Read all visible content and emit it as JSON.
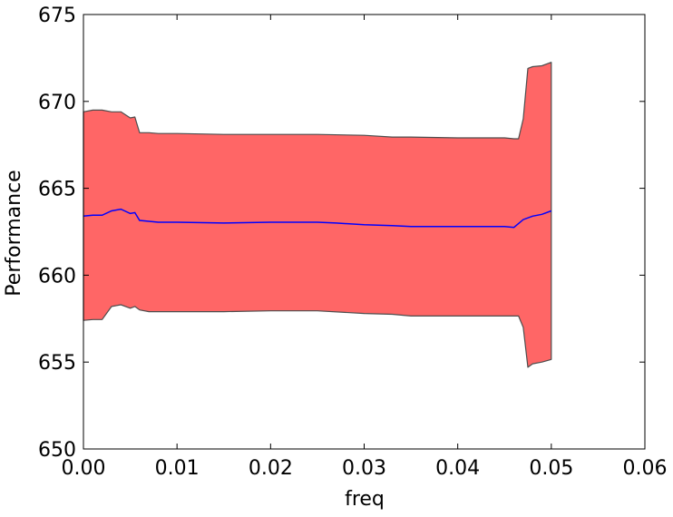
{
  "chart_data": {
    "type": "area",
    "title": "",
    "xlabel": "freq",
    "ylabel": "Performance",
    "xlim": [
      0.0,
      0.06
    ],
    "ylim": [
      650,
      675
    ],
    "x_ticks": [
      "0.00",
      "0.01",
      "0.02",
      "0.03",
      "0.04",
      "0.05",
      "0.06"
    ],
    "y_ticks": [
      "650",
      "655",
      "660",
      "665",
      "670",
      "675"
    ],
    "grid": false,
    "legend": "none",
    "colors": {
      "band_fill": "#ff6666",
      "band_edge": "#4d4d4d",
      "mean_line": "#0000ff"
    },
    "series": [
      {
        "role": "mean",
        "x": [
          0.0,
          0.001,
          0.002,
          0.003,
          0.004,
          0.005,
          0.0055,
          0.006,
          0.007,
          0.008,
          0.01,
          0.015,
          0.02,
          0.025,
          0.027,
          0.03,
          0.033,
          0.035,
          0.04,
          0.045,
          0.046,
          0.047,
          0.048,
          0.049,
          0.05
        ],
        "y": [
          663.4,
          663.45,
          663.45,
          663.7,
          663.8,
          663.55,
          663.6,
          663.15,
          663.1,
          663.05,
          663.05,
          663.0,
          663.05,
          663.05,
          663.0,
          662.9,
          662.85,
          662.8,
          662.8,
          662.8,
          662.75,
          663.2,
          663.4,
          663.5,
          663.7
        ]
      },
      {
        "role": "upper",
        "x": [
          0.0,
          0.001,
          0.002,
          0.003,
          0.004,
          0.005,
          0.0055,
          0.006,
          0.007,
          0.008,
          0.01,
          0.015,
          0.02,
          0.025,
          0.03,
          0.033,
          0.035,
          0.04,
          0.045,
          0.046,
          0.0465,
          0.047,
          0.0475,
          0.048,
          0.049,
          0.05
        ],
        "y": [
          669.4,
          669.5,
          669.5,
          669.4,
          669.4,
          669.05,
          669.1,
          668.2,
          668.2,
          668.15,
          668.15,
          668.1,
          668.1,
          668.1,
          668.05,
          667.95,
          667.95,
          667.9,
          667.9,
          667.85,
          667.85,
          669.0,
          671.9,
          672.0,
          672.05,
          672.25
        ]
      },
      {
        "role": "lower",
        "x": [
          0.0,
          0.001,
          0.002,
          0.003,
          0.004,
          0.005,
          0.0055,
          0.006,
          0.007,
          0.008,
          0.01,
          0.015,
          0.02,
          0.025,
          0.03,
          0.033,
          0.035,
          0.04,
          0.045,
          0.0465,
          0.047,
          0.0475,
          0.048,
          0.049,
          0.05
        ],
        "y": [
          657.4,
          657.45,
          657.45,
          658.2,
          658.3,
          658.1,
          658.2,
          658.0,
          657.9,
          657.9,
          657.9,
          657.9,
          657.95,
          657.95,
          657.8,
          657.75,
          657.65,
          657.65,
          657.65,
          657.65,
          657.0,
          654.7,
          654.9,
          655.0,
          655.15
        ]
      }
    ]
  }
}
